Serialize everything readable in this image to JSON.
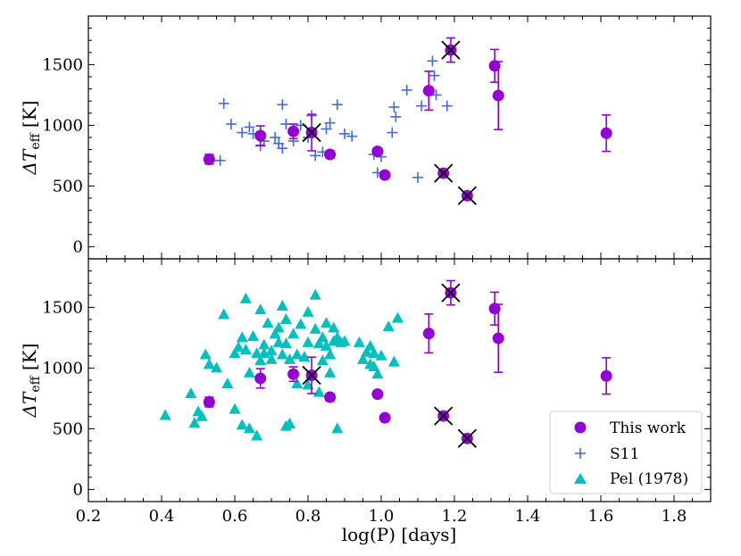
{
  "chart_data": {
    "type": "scatter",
    "xlabel": "log(P) [days]",
    "ylabel": "ΔT_eff [K]",
    "ylabel_main": "ΔT",
    "ylabel_sub": "eff",
    "ylabel_unit": " [K]",
    "xlim": [
      0.2,
      1.9
    ],
    "ylim": [
      -100,
      1900
    ],
    "x_ticks": [
      "0.2",
      "0.4",
      "0.6",
      "0.8",
      "1.0",
      "1.2",
      "1.4",
      "1.6",
      "1.8"
    ],
    "y_ticks": [
      "0",
      "500",
      "1000",
      "1500"
    ],
    "colors": {
      "this_work": "#9400d3",
      "s11": "#4169e1",
      "pel": "#00bfbf"
    },
    "legend": {
      "location": "lower-right",
      "entries": [
        "This work",
        "S11",
        "Pel (1978)"
      ]
    },
    "this_work": [
      {
        "x": 0.53,
        "y": 720,
        "err": 40,
        "crossed": false
      },
      {
        "x": 0.67,
        "y": 915,
        "err": 80,
        "crossed": false
      },
      {
        "x": 0.76,
        "y": 950,
        "err": 60,
        "crossed": false
      },
      {
        "x": 0.81,
        "y": 940,
        "err": 150,
        "crossed": true
      },
      {
        "x": 0.86,
        "y": 760,
        "err": 30,
        "crossed": false
      },
      {
        "x": 0.99,
        "y": 785,
        "err": 20,
        "crossed": false
      },
      {
        "x": 1.01,
        "y": 590,
        "err": 20,
        "crossed": false
      },
      {
        "x": 1.13,
        "y": 1285,
        "err": 160,
        "crossed": false
      },
      {
        "x": 1.17,
        "y": 605,
        "err": 20,
        "crossed": true
      },
      {
        "x": 1.19,
        "y": 1620,
        "err": 100,
        "crossed": true
      },
      {
        "x": 1.235,
        "y": 420,
        "err": 15,
        "crossed": true
      },
      {
        "x": 1.31,
        "y": 1490,
        "err": 135,
        "crossed": false
      },
      {
        "x": 1.32,
        "y": 1245,
        "err": 280,
        "crossed": false
      },
      {
        "x": 1.615,
        "y": 935,
        "err": 150,
        "crossed": false
      }
    ],
    "s11": [
      [
        0.56,
        710
      ],
      [
        0.57,
        1180
      ],
      [
        0.59,
        1010
      ],
      [
        0.62,
        940
      ],
      [
        0.64,
        985
      ],
      [
        0.65,
        930
      ],
      [
        0.67,
        830
      ],
      [
        0.68,
        870
      ],
      [
        0.71,
        900
      ],
      [
        0.72,
        850
      ],
      [
        0.73,
        810
      ],
      [
        0.73,
        1170
      ],
      [
        0.74,
        1010
      ],
      [
        0.76,
        870
      ],
      [
        0.78,
        1000
      ],
      [
        0.8,
        900
      ],
      [
        0.81,
        1080
      ],
      [
        0.82,
        750
      ],
      [
        0.84,
        780
      ],
      [
        0.85,
        970
      ],
      [
        0.86,
        1020
      ],
      [
        0.88,
        1170
      ],
      [
        0.9,
        930
      ],
      [
        0.92,
        910
      ],
      [
        0.98,
        760
      ],
      [
        0.99,
        610
      ],
      [
        1.0,
        740
      ],
      [
        1.03,
        940
      ],
      [
        1.035,
        1150
      ],
      [
        1.04,
        1070
      ],
      [
        1.07,
        1290
      ],
      [
        1.1,
        570
      ],
      [
        1.11,
        1160
      ],
      [
        1.13,
        1270
      ],
      [
        1.14,
        1530
      ],
      [
        1.145,
        1410
      ],
      [
        1.15,
        1250
      ],
      [
        1.18,
        1160
      ]
    ],
    "pel": [
      [
        0.41,
        610
      ],
      [
        0.48,
        790
      ],
      [
        0.49,
        545
      ],
      [
        0.5,
        640
      ],
      [
        0.51,
        600
      ],
      [
        0.52,
        1110
      ],
      [
        0.53,
        1030
      ],
      [
        0.53,
        730
      ],
      [
        0.55,
        1000
      ],
      [
        0.57,
        1440
      ],
      [
        0.58,
        870
      ],
      [
        0.6,
        1120
      ],
      [
        0.6,
        660
      ],
      [
        0.61,
        1170
      ],
      [
        0.62,
        530
      ],
      [
        0.62,
        1250
      ],
      [
        0.63,
        1570
      ],
      [
        0.63,
        1150
      ],
      [
        0.64,
        960
      ],
      [
        0.64,
        500
      ],
      [
        0.65,
        1260
      ],
      [
        0.66,
        1120
      ],
      [
        0.66,
        440
      ],
      [
        0.67,
        1060
      ],
      [
        0.67,
        1480
      ],
      [
        0.68,
        1190
      ],
      [
        0.68,
        1120
      ],
      [
        0.69,
        1370
      ],
      [
        0.7,
        1140
      ],
      [
        0.7,
        1070
      ],
      [
        0.71,
        1280
      ],
      [
        0.72,
        1330
      ],
      [
        0.72,
        1210
      ],
      [
        0.73,
        1110
      ],
      [
        0.73,
        1510
      ],
      [
        0.74,
        1400
      ],
      [
        0.74,
        1200
      ],
      [
        0.74,
        520
      ],
      [
        0.75,
        1070
      ],
      [
        0.75,
        540
      ],
      [
        0.76,
        1280
      ],
      [
        0.77,
        1110
      ],
      [
        0.77,
        870
      ],
      [
        0.78,
        1360
      ],
      [
        0.79,
        1090
      ],
      [
        0.8,
        1460
      ],
      [
        0.8,
        1210
      ],
      [
        0.8,
        860
      ],
      [
        0.82,
        1320
      ],
      [
        0.82,
        1600
      ],
      [
        0.83,
        1200
      ],
      [
        0.83,
        800
      ],
      [
        0.84,
        1250
      ],
      [
        0.84,
        1060
      ],
      [
        0.85,
        1370
      ],
      [
        0.85,
        1180
      ],
      [
        0.86,
        1110
      ],
      [
        0.86,
        960
      ],
      [
        0.87,
        1330
      ],
      [
        0.87,
        1220
      ],
      [
        0.88,
        1250
      ],
      [
        0.88,
        500
      ],
      [
        0.89,
        1210
      ],
      [
        0.9,
        1220
      ],
      [
        0.94,
        1210
      ],
      [
        0.95,
        1070
      ],
      [
        0.96,
        1130
      ],
      [
        0.97,
        1030
      ],
      [
        0.97,
        1180
      ],
      [
        0.98,
        1010
      ],
      [
        0.98,
        1120
      ],
      [
        0.99,
        950
      ],
      [
        1.0,
        1100
      ],
      [
        1.02,
        1340
      ],
      [
        1.035,
        1050
      ],
      [
        1.045,
        1410
      ]
    ]
  }
}
